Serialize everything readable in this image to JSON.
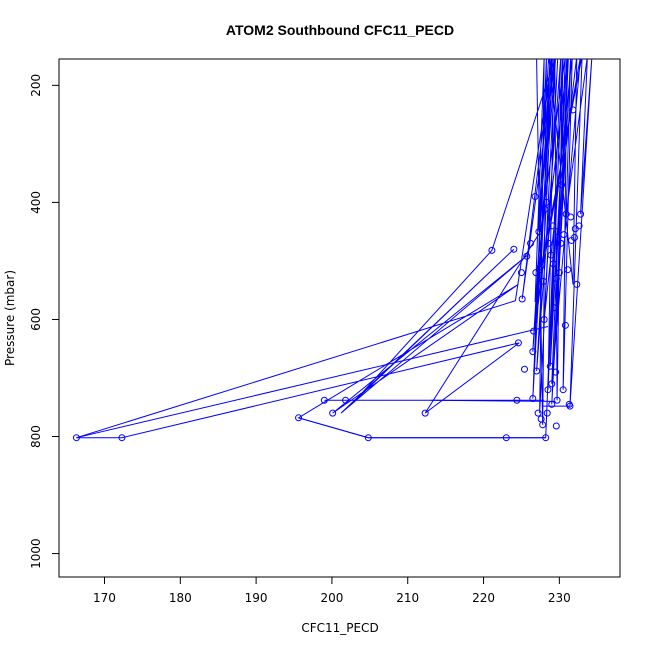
{
  "chart_data": {
    "type": "line",
    "title": "ATOM2 Southbound CFC11_PECD",
    "xlabel": "CFC11_PECD",
    "ylabel": "Pressure (mbar)",
    "xlim": [
      164,
      238
    ],
    "ylim": [
      1040,
      155
    ],
    "y_reversed": true,
    "x_ticks": [
      170,
      180,
      190,
      200,
      210,
      220,
      230
    ],
    "y_ticks": [
      200,
      400,
      600,
      800,
      1000
    ],
    "grid": false,
    "legend": "none",
    "color": "#0000ff",
    "series_points": [
      [
        227.0,
        155
      ],
      [
        227.8,
        780
      ],
      [
        228.3,
        150
      ],
      [
        226.5,
        735
      ],
      [
        229.0,
        150
      ],
      [
        225.1,
        565
      ],
      [
        229.4,
        155
      ],
      [
        221.1,
        482
      ],
      [
        203.1,
        738
      ],
      [
        224.0,
        480
      ],
      [
        201.2,
        760
      ],
      [
        225.8,
        490
      ],
      [
        200.1,
        760
      ],
      [
        224.6,
        540
      ],
      [
        195.6,
        768
      ],
      [
        204.8,
        802
      ],
      [
        223.0,
        802
      ],
      [
        228.2,
        802
      ],
      [
        230.2,
        150
      ],
      [
        227.0,
        688
      ],
      [
        228.3,
        400
      ],
      [
        229.1,
        150
      ],
      [
        224.2,
        568
      ],
      [
        166.3,
        802
      ],
      [
        172.3,
        802
      ],
      [
        224.7,
        640
      ],
      [
        212.3,
        760
      ],
      [
        227.5,
        450
      ],
      [
        230.8,
        150
      ],
      [
        229.0,
        710
      ],
      [
        232.8,
        150
      ],
      [
        228.2,
        485
      ],
      [
        229.5,
        150
      ],
      [
        226.8,
        618
      ],
      [
        231.1,
        155
      ],
      [
        229.0,
        745
      ],
      [
        231.5,
        150
      ],
      [
        230.9,
        420
      ],
      [
        233.7,
        150
      ],
      [
        232.8,
        420
      ],
      [
        234.3,
        150
      ],
      [
        231.4,
        748
      ],
      [
        233.0,
        150
      ],
      [
        227.6,
        510
      ],
      [
        228.8,
        150
      ],
      [
        226.5,
        655
      ],
      [
        229.3,
        150
      ],
      [
        228.5,
        720
      ],
      [
        230.5,
        150
      ],
      [
        229.7,
        600
      ],
      [
        231.2,
        150
      ],
      [
        230.3,
        370
      ],
      [
        232.3,
        150
      ],
      [
        231.8,
        540
      ],
      [
        228.6,
        150
      ],
      [
        227.2,
        450
      ],
      [
        229.4,
        150
      ],
      [
        229.7,
        738
      ],
      [
        230.4,
        150
      ],
      [
        228.8,
        680
      ],
      [
        231.0,
        150
      ],
      [
        230.5,
        720
      ],
      [
        231.7,
        150
      ],
      [
        228.0,
        600
      ],
      [
        229.8,
        150
      ],
      [
        227.4,
        760
      ],
      [
        228.0,
        150
      ],
      [
        226.8,
        570
      ]
    ],
    "extra_segments": [
      [
        [
          166.3,
          802
        ],
        [
          228.5,
          612
        ]
      ],
      [
        [
          195.6,
          768
        ],
        [
          204.8,
          802
        ],
        [
          228.2,
          802
        ]
      ],
      [
        [
          199.0,
          738
        ],
        [
          228.0,
          738
        ]
      ],
      [
        [
          213.1,
          738
        ],
        [
          229.5,
          740
        ]
      ],
      [
        [
          227.7,
          748
        ],
        [
          231.4,
          748
        ]
      ]
    ],
    "markers": [
      [
        166.3,
        802
      ],
      [
        172.3,
        802
      ],
      [
        195.6,
        768
      ],
      [
        199.0,
        738
      ],
      [
        200.1,
        760
      ],
      [
        201.8,
        738
      ],
      [
        204.8,
        802
      ],
      [
        212.3,
        760
      ],
      [
        221.1,
        482
      ],
      [
        223.0,
        802
      ],
      [
        224.0,
        480
      ],
      [
        224.4,
        738
      ],
      [
        224.6,
        640
      ],
      [
        225.0,
        520
      ],
      [
        225.1,
        565
      ],
      [
        225.4,
        685
      ],
      [
        225.7,
        492
      ],
      [
        226.2,
        470
      ],
      [
        226.5,
        735
      ],
      [
        226.6,
        620
      ],
      [
        226.8,
        390
      ],
      [
        226.9,
        520
      ],
      [
        227.0,
        688
      ],
      [
        227.2,
        760
      ],
      [
        227.3,
        450
      ],
      [
        227.5,
        510
      ],
      [
        227.6,
        770
      ],
      [
        227.8,
        780
      ],
      [
        227.9,
        535
      ],
      [
        228.0,
        600
      ],
      [
        228.1,
        412
      ],
      [
        228.2,
        802
      ],
      [
        228.3,
        400
      ],
      [
        228.4,
        760
      ],
      [
        228.5,
        720
      ],
      [
        228.6,
        470
      ],
      [
        228.8,
        680
      ],
      [
        229.0,
        745
      ],
      [
        229.1,
        440
      ],
      [
        229.2,
        505
      ],
      [
        229.3,
        580
      ],
      [
        229.5,
        690
      ],
      [
        229.6,
        782
      ],
      [
        229.7,
        738
      ],
      [
        229.8,
        450
      ],
      [
        230.0,
        520
      ],
      [
        230.2,
        470
      ],
      [
        230.5,
        720
      ],
      [
        230.8,
        610
      ],
      [
        230.9,
        420
      ],
      [
        231.1,
        515
      ],
      [
        231.3,
        745
      ],
      [
        231.4,
        748
      ],
      [
        231.6,
        465
      ],
      [
        231.8,
        242
      ],
      [
        232.0,
        460
      ],
      [
        232.3,
        540
      ],
      [
        232.6,
        440
      ],
      [
        232.8,
        420
      ],
      [
        230.3,
        370
      ],
      [
        229.6,
        530
      ],
      [
        228.9,
        490
      ],
      [
        227.4,
        515
      ],
      [
        226.5,
        655
      ],
      [
        229.0,
        710
      ],
      [
        230.6,
        455
      ],
      [
        231.5,
        425
      ],
      [
        232.1,
        445
      ]
    ]
  }
}
